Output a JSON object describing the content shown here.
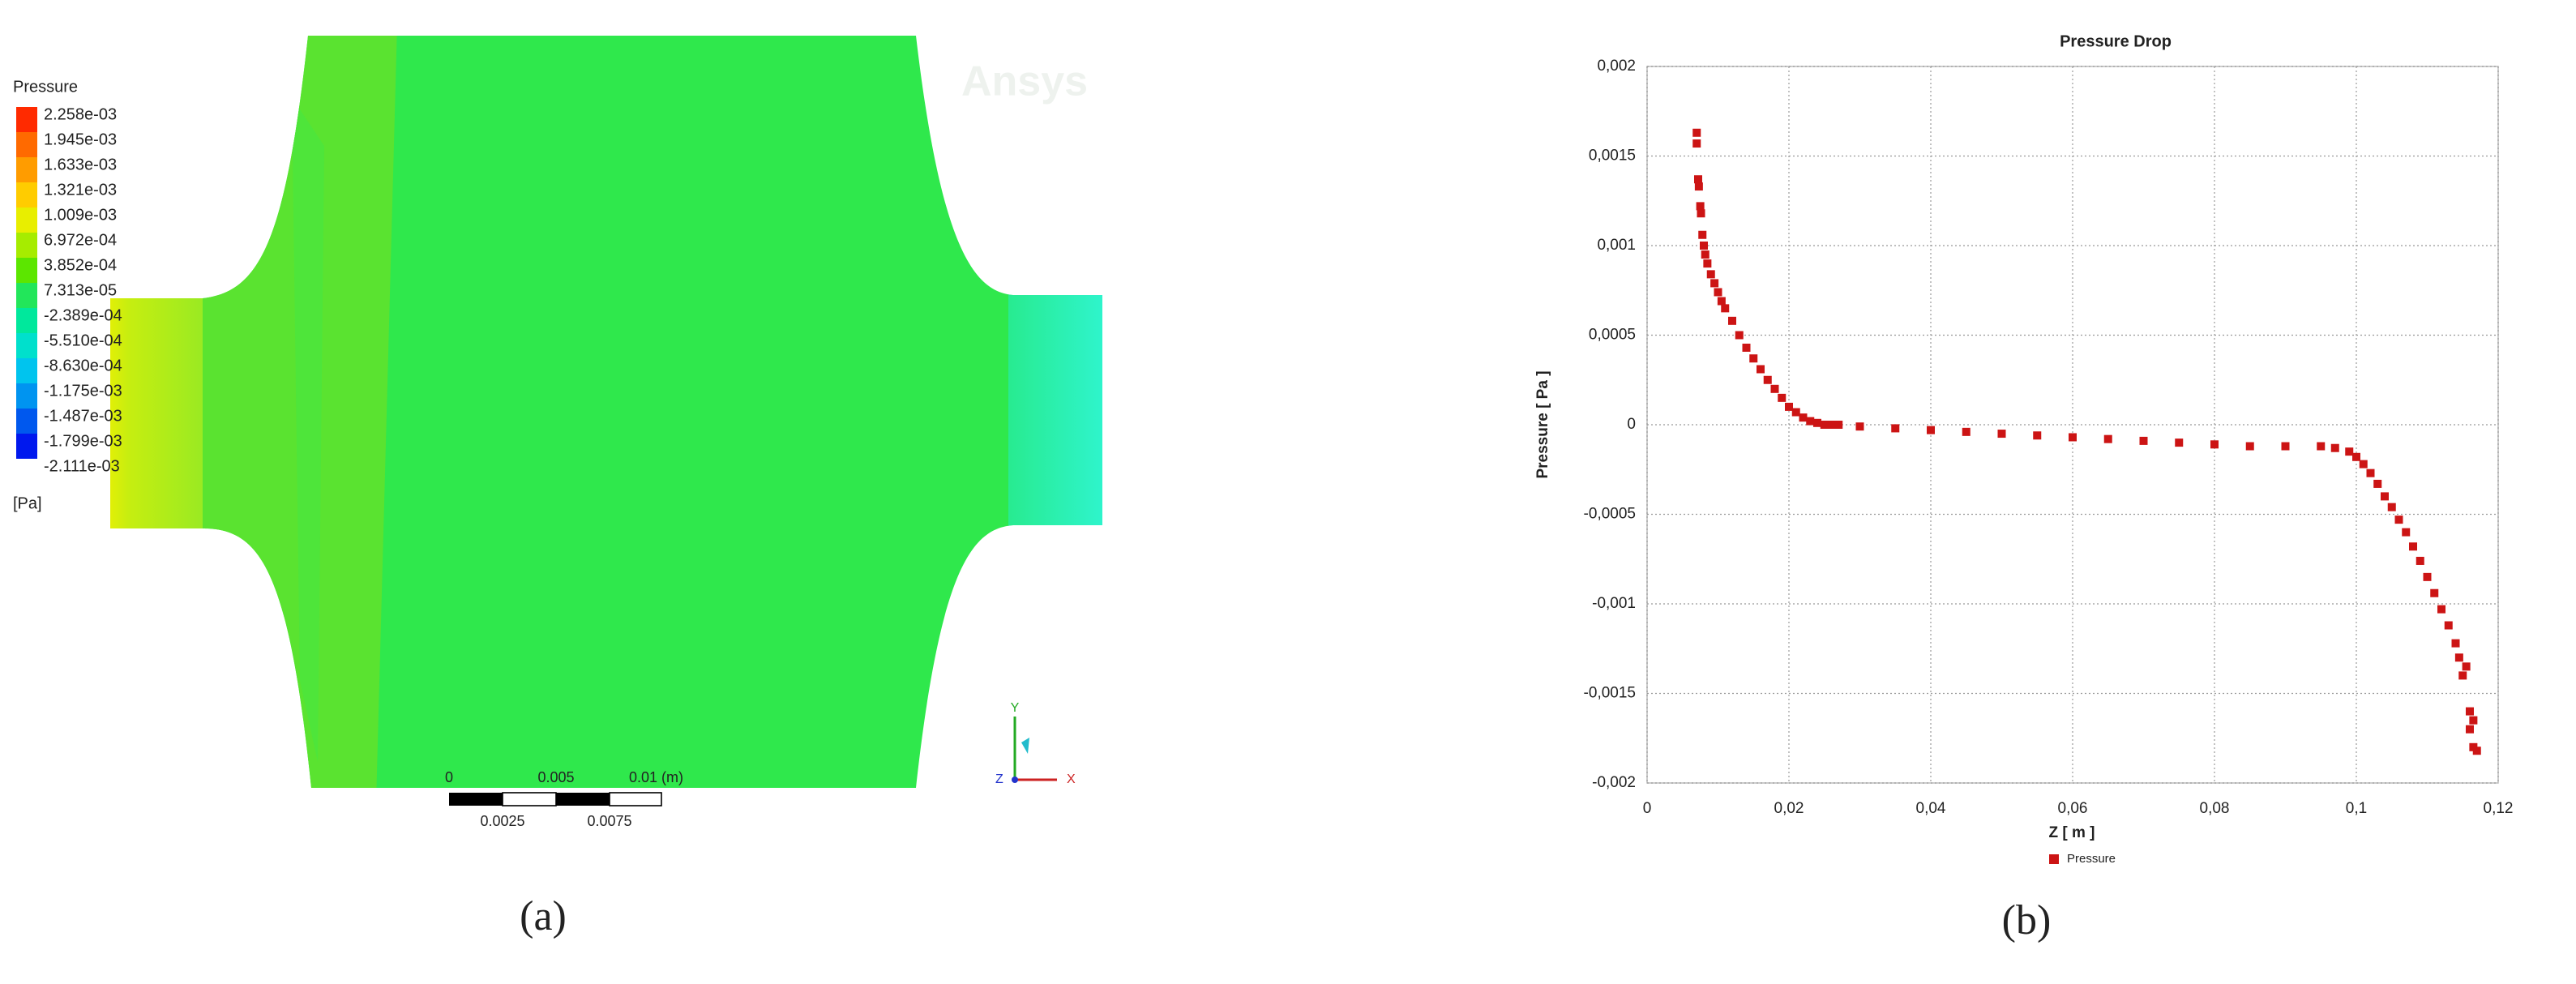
{
  "panel_a": {
    "legend_title": "Pressure",
    "levels": [
      "2.258e-03",
      "1.945e-03",
      "1.633e-03",
      "1.321e-03",
      "1.009e-03",
      "6.972e-04",
      "3.852e-04",
      "7.313e-05",
      "-2.389e-04",
      "-5.510e-04",
      "-8.630e-04",
      "-1.175e-03",
      "-1.487e-03",
      "-1.799e-03",
      "-2.111e-03"
    ],
    "colorbar_colors": [
      "#ff2a00",
      "#ff6a00",
      "#ff9c00",
      "#ffcc00",
      "#e8ee00",
      "#a6ec00",
      "#5ce600",
      "#22e65a",
      "#00e89c",
      "#00e0cc",
      "#00c4ee",
      "#0094f0",
      "#0058ee",
      "#0018ee"
    ],
    "unit": "[Pa]",
    "watermark": "Ansys",
    "scale_top": [
      "0",
      "0.005",
      "0.01 (m)"
    ],
    "scale_bottom": [
      "0.0025",
      "0.0075"
    ],
    "triad": [
      "Y",
      "X",
      "Z"
    ],
    "caption": "(a)"
  },
  "chart_data": {
    "type": "scatter",
    "title": "Pressure Drop",
    "x_label": "Z [ m ]",
    "y_label": "Pressure [ Pa ]",
    "caption": "(b)",
    "xlim": [
      0,
      0.12
    ],
    "xticks": [
      0,
      {
        "value": 0.02,
        "label": "0,02"
      },
      {
        "value": 0.04,
        "label": "0,04"
      },
      {
        "value": 0.06,
        "label": "0,06"
      },
      {
        "value": 0.08,
        "label": "0,08"
      },
      {
        "value": 0.1,
        "label": "0,1"
      },
      {
        "value": 0.12,
        "label": "0,12"
      }
    ],
    "ylim": [
      -0.002,
      0.002
    ],
    "yticks": [
      {
        "value": -0.002,
        "label": "-0,002"
      },
      {
        "value": -0.0015,
        "label": "-0,0015"
      },
      {
        "value": -0.001,
        "label": "-0,001"
      },
      {
        "value": -0.0005,
        "label": "-0,0005"
      },
      0,
      {
        "value": 0.0005,
        "label": "0,0005"
      },
      {
        "value": 0.001,
        "label": "0,001"
      },
      {
        "value": 0.0015,
        "label": "0,0015"
      },
      {
        "value": 0.002,
        "label": "0,002"
      }
    ],
    "grid": true,
    "legend": "bottom",
    "x": [
      0.007,
      0.007,
      0.0072,
      0.0073,
      0.0075,
      0.0076,
      0.0078,
      0.008,
      0.0082,
      0.0085,
      0.009,
      0.0095,
      0.01,
      0.0105,
      0.011,
      0.012,
      0.013,
      0.014,
      0.015,
      0.016,
      0.017,
      0.018,
      0.019,
      0.02,
      0.021,
      0.022,
      0.023,
      0.024,
      0.025,
      0.026,
      0.027,
      0.03,
      0.035,
      0.04,
      0.045,
      0.05,
      0.055,
      0.06,
      0.065,
      0.07,
      0.075,
      0.08,
      0.085,
      0.09,
      0.095,
      0.097,
      0.099,
      0.1,
      0.101,
      0.102,
      0.103,
      0.104,
      0.105,
      0.106,
      0.107,
      0.108,
      0.109,
      0.11,
      0.111,
      0.112,
      0.113,
      0.114,
      0.1145,
      0.115,
      0.1155,
      0.116,
      0.116,
      0.1165,
      0.1165,
      0.117
    ],
    "series": [
      {
        "name": "Pressure",
        "color": "#cc1414",
        "values": [
          0.00163,
          0.00157,
          0.00137,
          0.00133,
          0.00122,
          0.00118,
          0.00106,
          0.001,
          0.00095,
          0.0009,
          0.00084,
          0.00079,
          0.00074,
          0.00069,
          0.00065,
          0.00058,
          0.0005,
          0.00043,
          0.00037,
          0.00031,
          0.00025,
          0.0002,
          0.00015,
          0.0001,
          7e-05,
          4e-05,
          2e-05,
          1e-05,
          0,
          0,
          0,
          -1e-05,
          -2e-05,
          -3e-05,
          -4e-05,
          -5e-05,
          -6e-05,
          -7e-05,
          -8e-05,
          -9e-05,
          -0.0001,
          -0.00011,
          -0.00012,
          -0.00012,
          -0.00012,
          -0.00013,
          -0.00015,
          -0.00018,
          -0.00022,
          -0.00027,
          -0.00033,
          -0.0004,
          -0.00046,
          -0.00053,
          -0.0006,
          -0.00068,
          -0.00076,
          -0.00085,
          -0.00094,
          -0.00103,
          -0.00112,
          -0.00122,
          -0.0013,
          -0.0014,
          -0.00135,
          -0.0016,
          -0.0017,
          -0.00165,
          -0.0018,
          -0.00182
        ]
      }
    ]
  }
}
